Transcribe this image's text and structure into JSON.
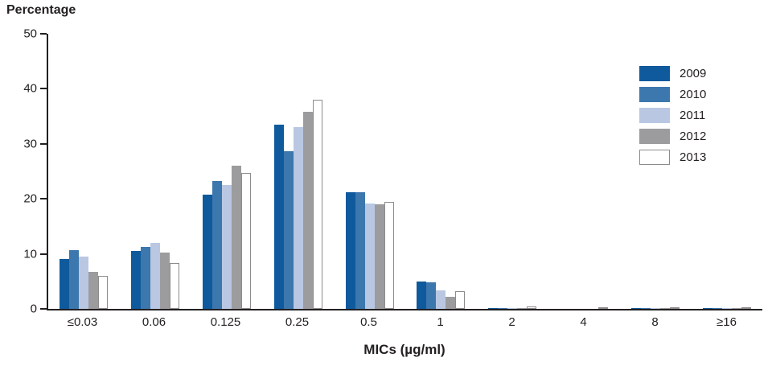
{
  "title": "Percentage",
  "xlabel": "MICs (µg/ml)",
  "colors": {
    "series_2009": "#0f5a9c",
    "series_2010": "#3c77ad",
    "series_2011": "#b9c7e2",
    "series_2012": "#9c9c9e",
    "series_2013": "#ffffff",
    "axis": "#231f20",
    "hollow_border": "#8c8c8c"
  },
  "chart_data": {
    "type": "bar",
    "title": "Percentage",
    "xlabel": "MICs (µg/ml)",
    "ylabel": "Percentage",
    "ylim": [
      0,
      50
    ],
    "yticks": [
      0,
      10,
      20,
      30,
      40,
      50
    ],
    "grid": false,
    "legend_position": "right",
    "categories": [
      "≤0.03",
      "0.06",
      "0.125",
      "0.25",
      "0.5",
      "1",
      "2",
      "4",
      "8",
      "≥16"
    ],
    "series": [
      {
        "name": "2009",
        "color": "#0f5a9c",
        "hollow": false,
        "values": [
          9.0,
          10.5,
          20.8,
          33.5,
          21.2,
          5.0,
          0.2,
          0.0,
          0.2,
          0.2
        ]
      },
      {
        "name": "2010",
        "color": "#3c77ad",
        "hollow": false,
        "values": [
          10.7,
          11.2,
          23.2,
          28.7,
          21.2,
          4.8,
          0.2,
          0.0,
          0.2,
          0.2
        ]
      },
      {
        "name": "2011",
        "color": "#b9c7e2",
        "hollow": false,
        "values": [
          9.5,
          12.0,
          22.5,
          33.0,
          19.2,
          3.3,
          0.2,
          0.0,
          0.1,
          0.1
        ]
      },
      {
        "name": "2012",
        "color": "#9c9c9e",
        "hollow": false,
        "values": [
          6.7,
          10.3,
          26.0,
          35.8,
          19.0,
          2.2,
          0.2,
          0.0,
          0.1,
          0.1
        ]
      },
      {
        "name": "2013",
        "color": "#ffffff",
        "hollow": true,
        "values": [
          6.0,
          8.3,
          24.7,
          38.0,
          19.5,
          3.2,
          0.4,
          0.0,
          0.2,
          0.2
        ]
      }
    ]
  }
}
